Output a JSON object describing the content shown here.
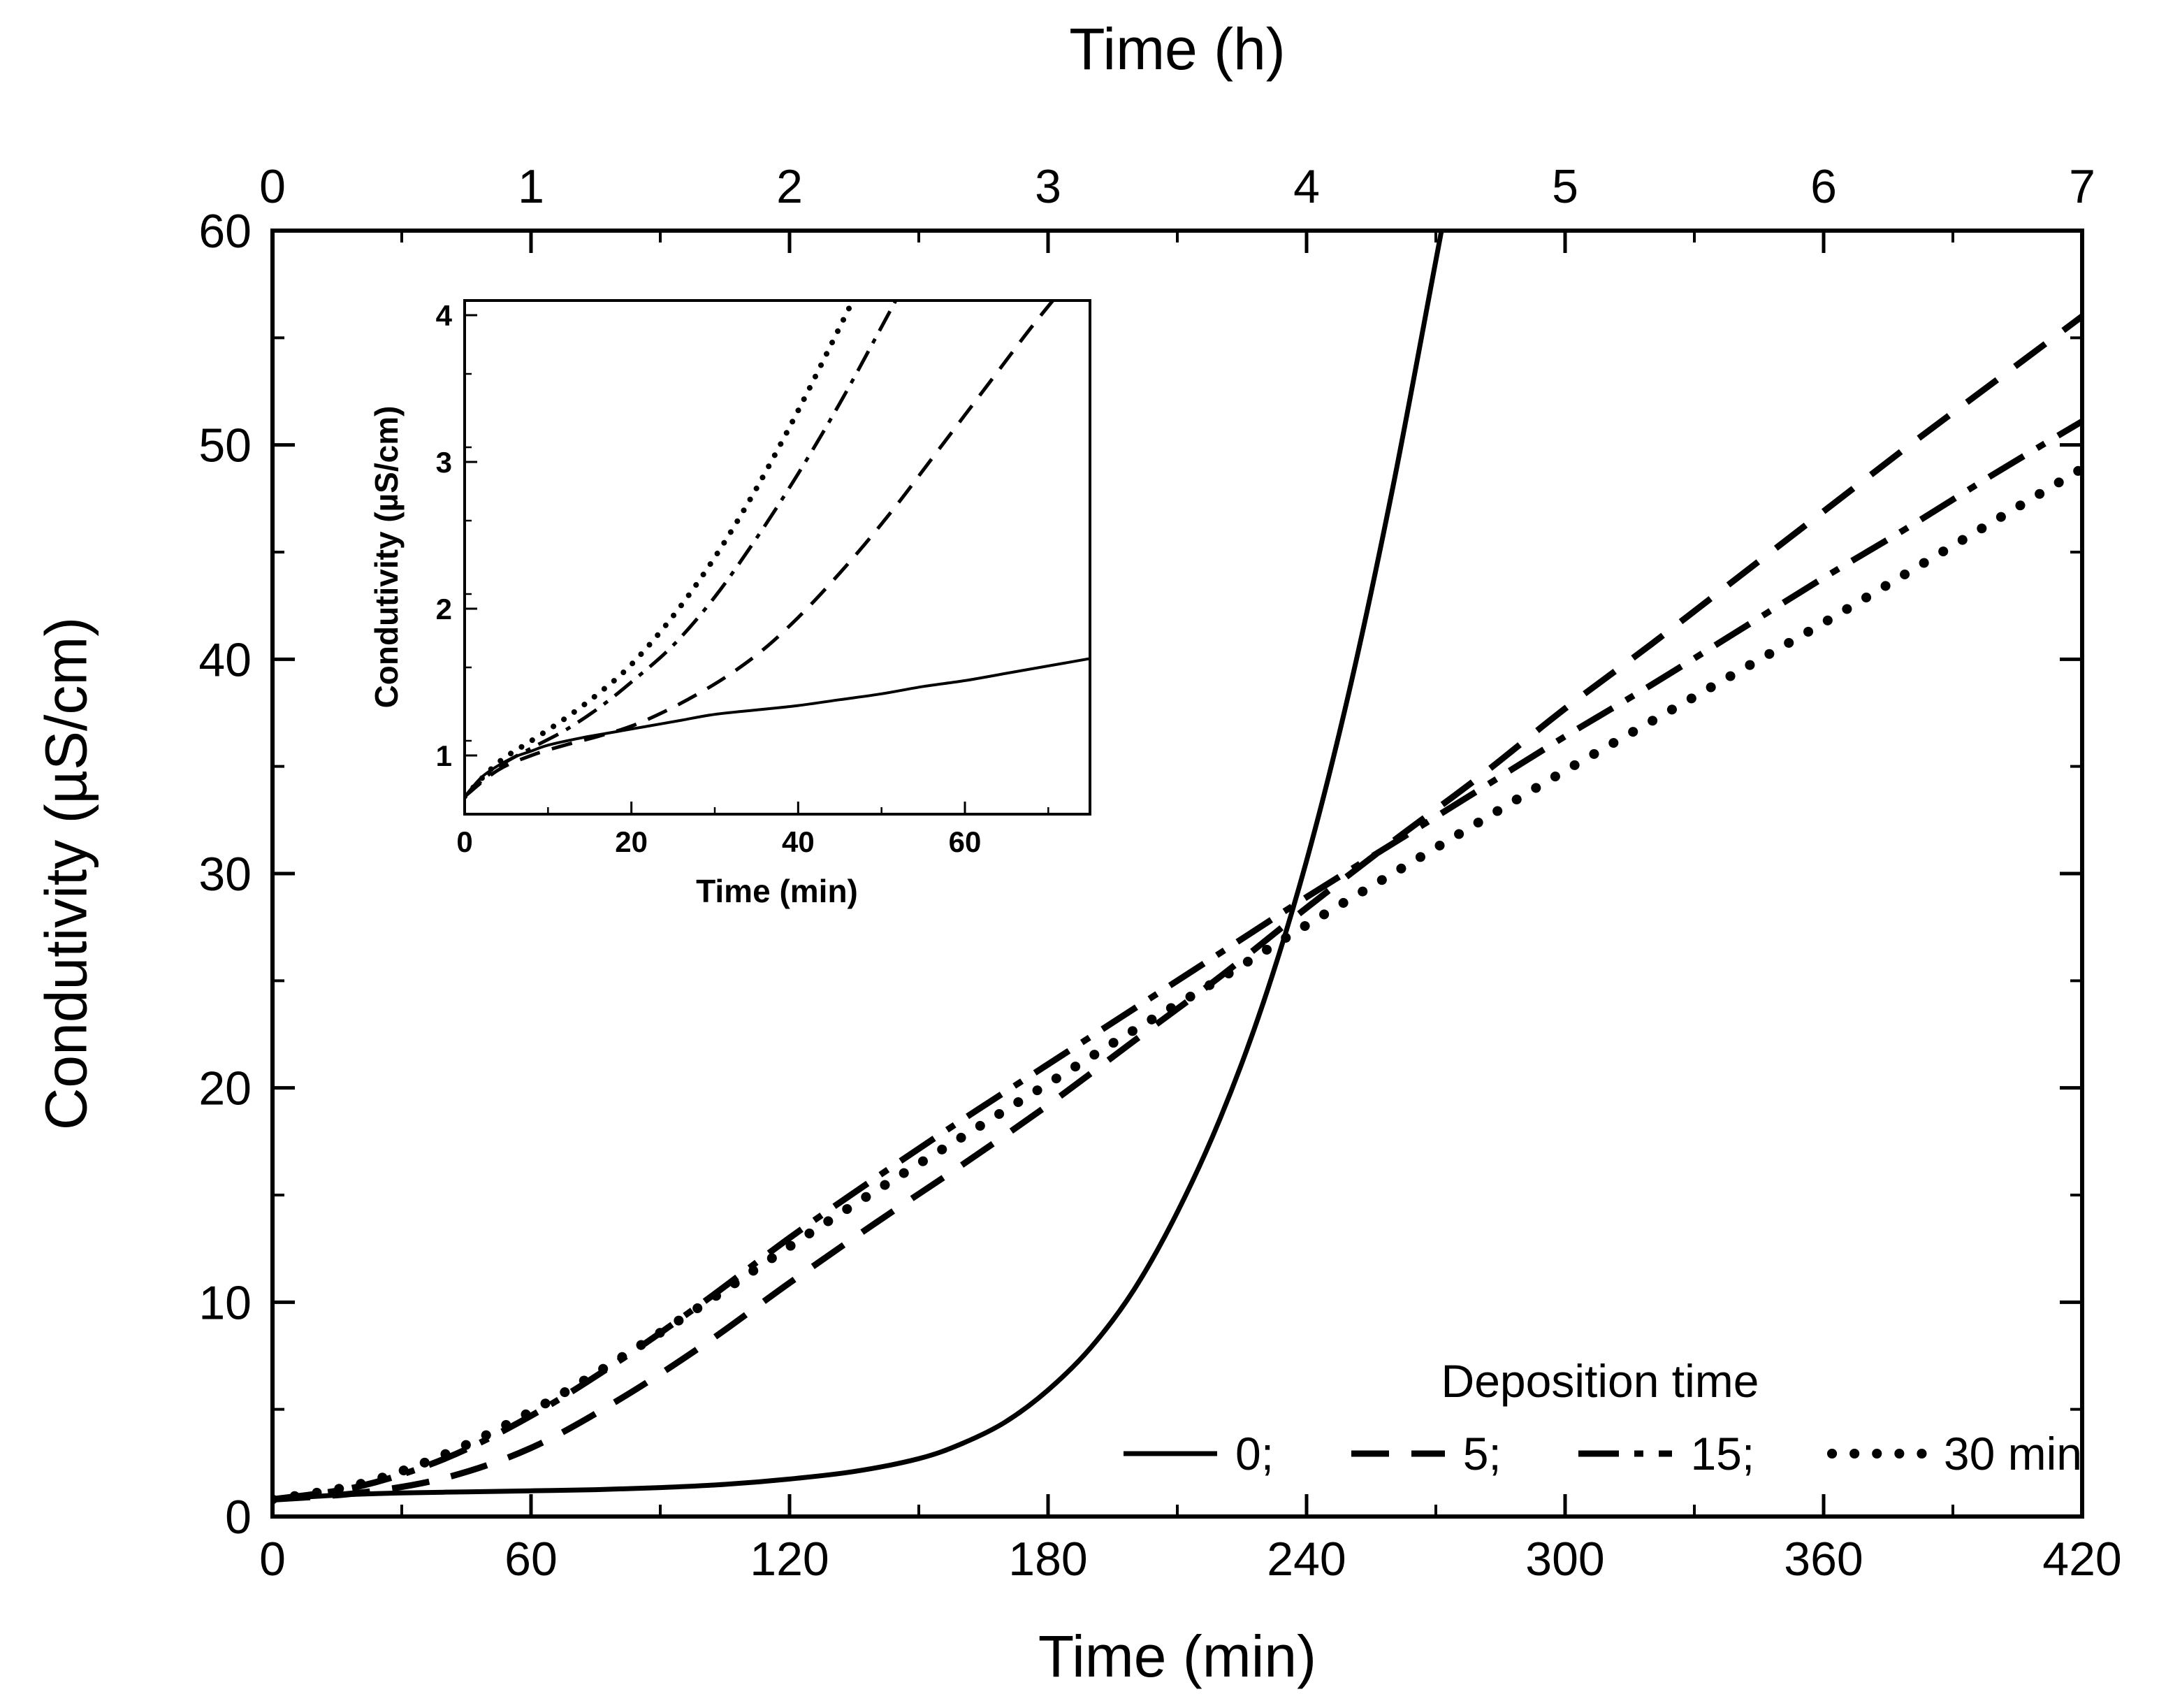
{
  "figure": {
    "background": "#ffffff",
    "line_color": "#000000"
  },
  "chart_data": {
    "type": "line",
    "title": "",
    "main": {
      "xlabel_bottom": "Time (min)",
      "xlabel_top": "Time (h)",
      "ylabel": "Condutivity (µS/cm)",
      "x_min": 0,
      "x_max": 420,
      "x_top_min": 0,
      "x_top_max": 7,
      "y_min": 0,
      "y_max": 60,
      "xticks_bottom": [
        0,
        60,
        120,
        180,
        240,
        300,
        360,
        420
      ],
      "xticks_top": [
        0,
        1,
        2,
        3,
        4,
        5,
        6,
        7
      ],
      "yticks": [
        0,
        10,
        20,
        30,
        40,
        50,
        60
      ],
      "x_minor_step": 30,
      "x_top_minor_step": 0.5,
      "y_minor_step": 5,
      "series": [
        {
          "name": "0",
          "style": "solid",
          "points": [
            [
              0,
              0.8
            ],
            [
              15,
              1.0
            ],
            [
              30,
              1.1
            ],
            [
              45,
              1.15
            ],
            [
              60,
              1.2
            ],
            [
              75,
              1.25
            ],
            [
              90,
              1.35
            ],
            [
              105,
              1.5
            ],
            [
              120,
              1.75
            ],
            [
              135,
              2.1
            ],
            [
              150,
              2.7
            ],
            [
              160,
              3.4
            ],
            [
              170,
              4.4
            ],
            [
              180,
              5.9
            ],
            [
              190,
              7.9
            ],
            [
              200,
              10.6
            ],
            [
              210,
              14.2
            ],
            [
              220,
              18.6
            ],
            [
              230,
              24.0
            ],
            [
              240,
              30.6
            ],
            [
              250,
              38.6
            ],
            [
              260,
              48.0
            ],
            [
              270,
              58.6
            ],
            [
              276,
              65.0
            ]
          ]
        },
        {
          "name": "5",
          "style": "dashed",
          "points": [
            [
              0,
              0.8
            ],
            [
              20,
              1.1
            ],
            [
              40,
              1.8
            ],
            [
              60,
              3.2
            ],
            [
              80,
              5.4
            ],
            [
              100,
              8.0
            ],
            [
              120,
              10.9
            ],
            [
              140,
              13.7
            ],
            [
              160,
              16.4
            ],
            [
              180,
              19.2
            ],
            [
              200,
              22.2
            ],
            [
              220,
              25.2
            ],
            [
              240,
              28.4
            ],
            [
              260,
              31.5
            ],
            [
              280,
              34.5
            ],
            [
              300,
              37.7
            ],
            [
              320,
              40.7
            ],
            [
              340,
              43.8
            ],
            [
              360,
              46.9
            ],
            [
              380,
              50.0
            ],
            [
              400,
              53.0
            ],
            [
              420,
              56.0
            ]
          ]
        },
        {
          "name": "15",
          "style": "dashdot",
          "points": [
            [
              0,
              0.8
            ],
            [
              20,
              1.4
            ],
            [
              40,
              2.7
            ],
            [
              60,
              4.7
            ],
            [
              80,
              7.2
            ],
            [
              100,
              10.0
            ],
            [
              120,
              13.0
            ],
            [
              140,
              15.8
            ],
            [
              160,
              18.5
            ],
            [
              180,
              21.1
            ],
            [
              200,
              23.7
            ],
            [
              220,
              26.3
            ],
            [
              240,
              28.9
            ],
            [
              260,
              31.4
            ],
            [
              280,
              33.9
            ],
            [
              300,
              36.4
            ],
            [
              320,
              38.8
            ],
            [
              340,
              41.3
            ],
            [
              360,
              43.8
            ],
            [
              380,
              46.2
            ],
            [
              400,
              48.7
            ],
            [
              420,
              51.1
            ]
          ]
        },
        {
          "name": "30",
          "style": "dotted",
          "points": [
            [
              0,
              0.8
            ],
            [
              20,
              1.5
            ],
            [
              40,
              2.9
            ],
            [
              60,
              4.9
            ],
            [
              80,
              7.3
            ],
            [
              100,
              9.9
            ],
            [
              120,
              12.6
            ],
            [
              140,
              15.2
            ],
            [
              160,
              17.7
            ],
            [
              180,
              20.2
            ],
            [
              200,
              22.7
            ],
            [
              220,
              25.1
            ],
            [
              240,
              27.6
            ],
            [
              260,
              30.0
            ],
            [
              280,
              32.4
            ],
            [
              300,
              34.8
            ],
            [
              320,
              37.1
            ],
            [
              340,
              39.4
            ],
            [
              360,
              41.7
            ],
            [
              380,
              44.1
            ],
            [
              400,
              46.5
            ],
            [
              420,
              48.9
            ]
          ]
        }
      ]
    },
    "inset": {
      "xlabel": "Time (min)",
      "ylabel": "Condutivity (µS/cm)",
      "x_min": 0,
      "x_max": 75,
      "y_min": 0.6,
      "y_max": 4.1,
      "xticks": [
        0,
        20,
        40,
        60
      ],
      "yticks": [
        1,
        2,
        3,
        4
      ],
      "x_minor_step": 10,
      "y_minor_step": 0.5,
      "series": [
        {
          "name": "0",
          "style": "solid",
          "points": [
            [
              0,
              0.72
            ],
            [
              2,
              0.85
            ],
            [
              4,
              0.93
            ],
            [
              6,
              0.99
            ],
            [
              8,
              1.03
            ],
            [
              10,
              1.07
            ],
            [
              14,
              1.12
            ],
            [
              18,
              1.16
            ],
            [
              22,
              1.2
            ],
            [
              26,
              1.24
            ],
            [
              30,
              1.28
            ],
            [
              35,
              1.31
            ],
            [
              40,
              1.34
            ],
            [
              45,
              1.38
            ],
            [
              50,
              1.42
            ],
            [
              55,
              1.47
            ],
            [
              60,
              1.51
            ],
            [
              65,
              1.56
            ],
            [
              70,
              1.61
            ],
            [
              75,
              1.66
            ]
          ]
        },
        {
          "name": "5",
          "style": "dashed",
          "points": [
            [
              0,
              0.72
            ],
            [
              4,
              0.9
            ],
            [
              8,
              1.0
            ],
            [
              12,
              1.07
            ],
            [
              16,
              1.13
            ],
            [
              20,
              1.2
            ],
            [
              24,
              1.3
            ],
            [
              28,
              1.42
            ],
            [
              32,
              1.56
            ],
            [
              36,
              1.73
            ],
            [
              40,
              1.94
            ],
            [
              44,
              2.18
            ],
            [
              48,
              2.44
            ],
            [
              52,
              2.72
            ],
            [
              56,
              3.02
            ],
            [
              60,
              3.32
            ],
            [
              64,
              3.62
            ],
            [
              68,
              3.92
            ],
            [
              72,
              4.2
            ]
          ]
        },
        {
          "name": "15",
          "style": "dashdot",
          "points": [
            [
              0,
              0.72
            ],
            [
              4,
              0.92
            ],
            [
              8,
              1.05
            ],
            [
              12,
              1.17
            ],
            [
              16,
              1.32
            ],
            [
              20,
              1.5
            ],
            [
              25,
              1.75
            ],
            [
              30,
              2.08
            ],
            [
              35,
              2.48
            ],
            [
              40,
              2.92
            ],
            [
              45,
              3.4
            ],
            [
              50,
              3.92
            ],
            [
              55,
              4.45
            ]
          ]
        },
        {
          "name": "30",
          "style": "dotted",
          "points": [
            [
              0,
              0.72
            ],
            [
              4,
              0.95
            ],
            [
              8,
              1.1
            ],
            [
              12,
              1.25
            ],
            [
              16,
              1.42
            ],
            [
              20,
              1.62
            ],
            [
              25,
              1.95
            ],
            [
              30,
              2.35
            ],
            [
              35,
              2.82
            ],
            [
              40,
              3.35
            ],
            [
              45,
              3.92
            ],
            [
              50,
              4.5
            ]
          ]
        }
      ]
    },
    "legend": {
      "title": "Deposition time",
      "entries": [
        {
          "label": "0;",
          "style": "solid"
        },
        {
          "label": "5;",
          "style": "dashed"
        },
        {
          "label": "15;",
          "style": "dashdot"
        },
        {
          "label": "30 min",
          "style": "dotted"
        }
      ]
    }
  }
}
